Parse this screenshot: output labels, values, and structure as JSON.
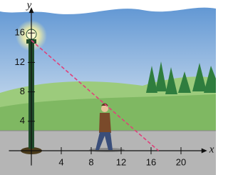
{
  "chart_data": {
    "type": "line",
    "x_label": "x",
    "y_label": "y",
    "x": [
      0,
      17
    ],
    "series": [
      {
        "color": "#e0407a",
        "dashed": true,
        "values": [
          15,
          0
        ]
      }
    ],
    "xlim": [
      -3,
      23.5
    ],
    "ylim": [
      -2,
      19.5
    ],
    "xticks": [
      4,
      8,
      12,
      16,
      20
    ],
    "yticks": [
      4,
      8,
      12,
      16
    ],
    "grid": false
  }
}
